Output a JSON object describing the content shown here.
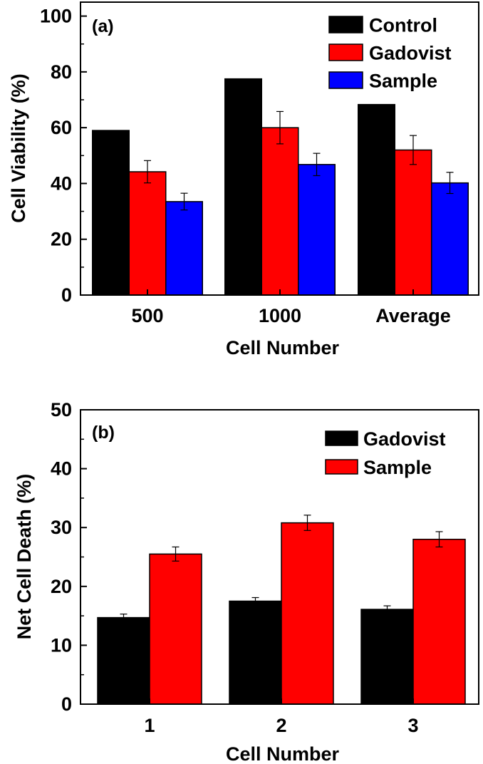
{
  "chart_data": [
    {
      "type": "bar",
      "panel_label": "(a)",
      "categories": [
        "500",
        "1000",
        "Average"
      ],
      "series": [
        {
          "name": "Control",
          "color": "#000000",
          "values": [
            59,
            77.5,
            68.3
          ],
          "errors": [
            0,
            0,
            0
          ]
        },
        {
          "name": "Gadovist",
          "color": "#ff0000",
          "values": [
            44.2,
            60,
            52
          ],
          "errors": [
            4,
            5.8,
            5.2
          ]
        },
        {
          "name": "Sample",
          "color": "#0000ff",
          "values": [
            33.5,
            46.8,
            40.2
          ],
          "errors": [
            3,
            4,
            3.8
          ]
        }
      ],
      "xlabel": "Cell Number",
      "ylabel": "Cell Viability (%)",
      "ylim": [
        0,
        105
      ],
      "yticks": [
        "0",
        "20",
        "40",
        "60",
        "80",
        "100"
      ],
      "ytick_values": [
        0,
        20,
        40,
        60,
        80,
        100
      ],
      "legend": "top-right"
    },
    {
      "type": "bar",
      "panel_label": "(b)",
      "categories": [
        "1",
        "2",
        "3"
      ],
      "series": [
        {
          "name": "Gadovist",
          "color": "#000000",
          "values": [
            14.7,
            17.5,
            16.1
          ],
          "errors": [
            0.6,
            0.6,
            0.6
          ]
        },
        {
          "name": "Sample",
          "color": "#ff0000",
          "values": [
            25.5,
            30.8,
            28
          ],
          "errors": [
            1.2,
            1.3,
            1.3
          ]
        }
      ],
      "xlabel": "Cell Number",
      "ylabel": "Net Cell Death (%)",
      "ylim": [
        0,
        50
      ],
      "yticks": [
        "0",
        "10",
        "20",
        "30",
        "40",
        "50"
      ],
      "ytick_values": [
        0,
        10,
        20,
        30,
        40,
        50
      ],
      "legend": "top-right"
    }
  ]
}
